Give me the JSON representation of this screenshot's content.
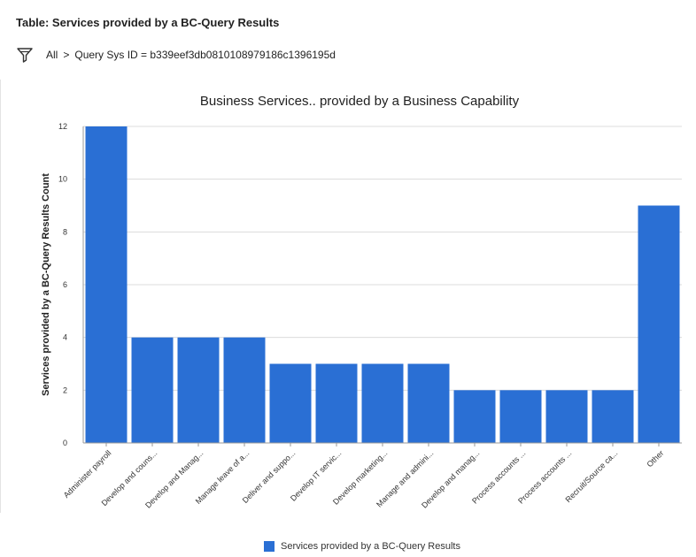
{
  "header": {
    "table_title": "Table: Services provided by a BC-Query Results",
    "breadcrumb_all": "All",
    "breadcrumb_separator": ">",
    "breadcrumb_filter": "Query Sys ID = b339eef3db0810108979186c1396195d"
  },
  "icons": {
    "filter": "filter-funnel-icon"
  },
  "colors": {
    "bar": "#2a6fd4",
    "grid": "#dcdcdc",
    "axis": "#555555"
  },
  "chart_data": {
    "type": "bar",
    "title": "Business Services.. provided by a Business Capability",
    "xlabel": "",
    "ylabel": "Services provided by a BC-Query Results Count",
    "ylim": [
      0,
      12
    ],
    "yticks": [
      0,
      2,
      4,
      6,
      8,
      10,
      12
    ],
    "grid": true,
    "legend_position": "bottom",
    "categories": [
      "Administer payroll",
      "Develop and couns...",
      "Develop and Manag...",
      "Manage leave of a...",
      "Deliver and suppo...",
      "Develop IT servic...",
      "Develop marketing...",
      "Manage and admini...",
      "Develop and manag...",
      "Process accounts ...",
      "Process accounts ...",
      "Recruit/Source ca...",
      "Other"
    ],
    "series": [
      {
        "name": "Services provided by a BC-Query Results",
        "values": [
          12,
          4,
          4,
          4,
          3,
          3,
          3,
          3,
          2,
          2,
          2,
          2,
          9
        ]
      }
    ]
  }
}
